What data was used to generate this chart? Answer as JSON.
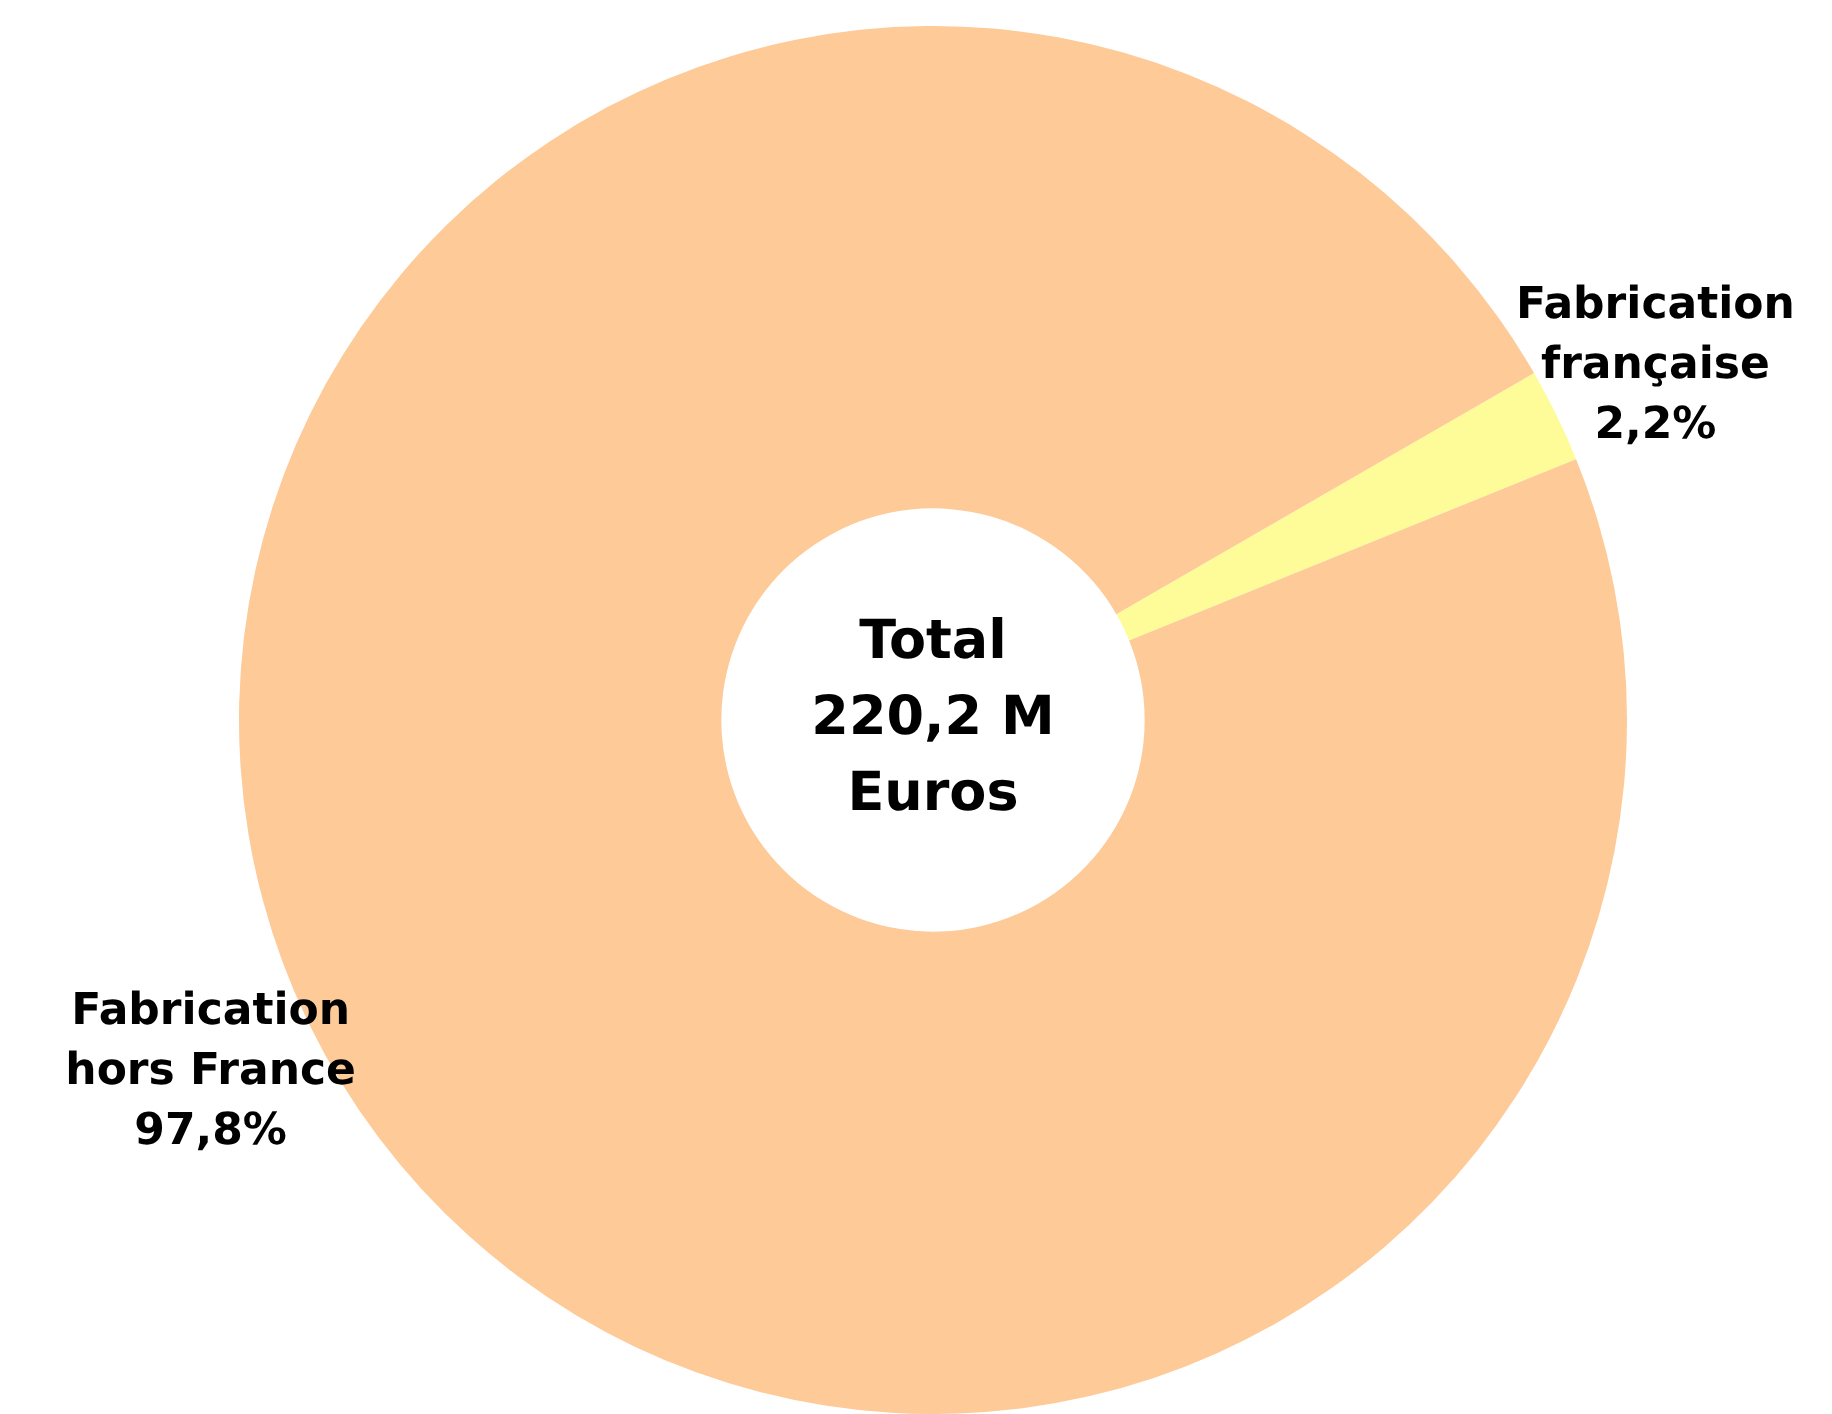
{
  "chart_data": {
    "type": "donut",
    "categories": [
      "Fabrication française",
      "Fabrication hors France"
    ],
    "values": [
      2.2,
      97.8
    ],
    "colors": [
      "#fdfc98",
      "#fdca98"
    ],
    "value_labels": [
      "2,2%",
      "97,8%"
    ],
    "annotations": [
      "Total 220,2 M Euros"
    ],
    "legend": false
  }
}
